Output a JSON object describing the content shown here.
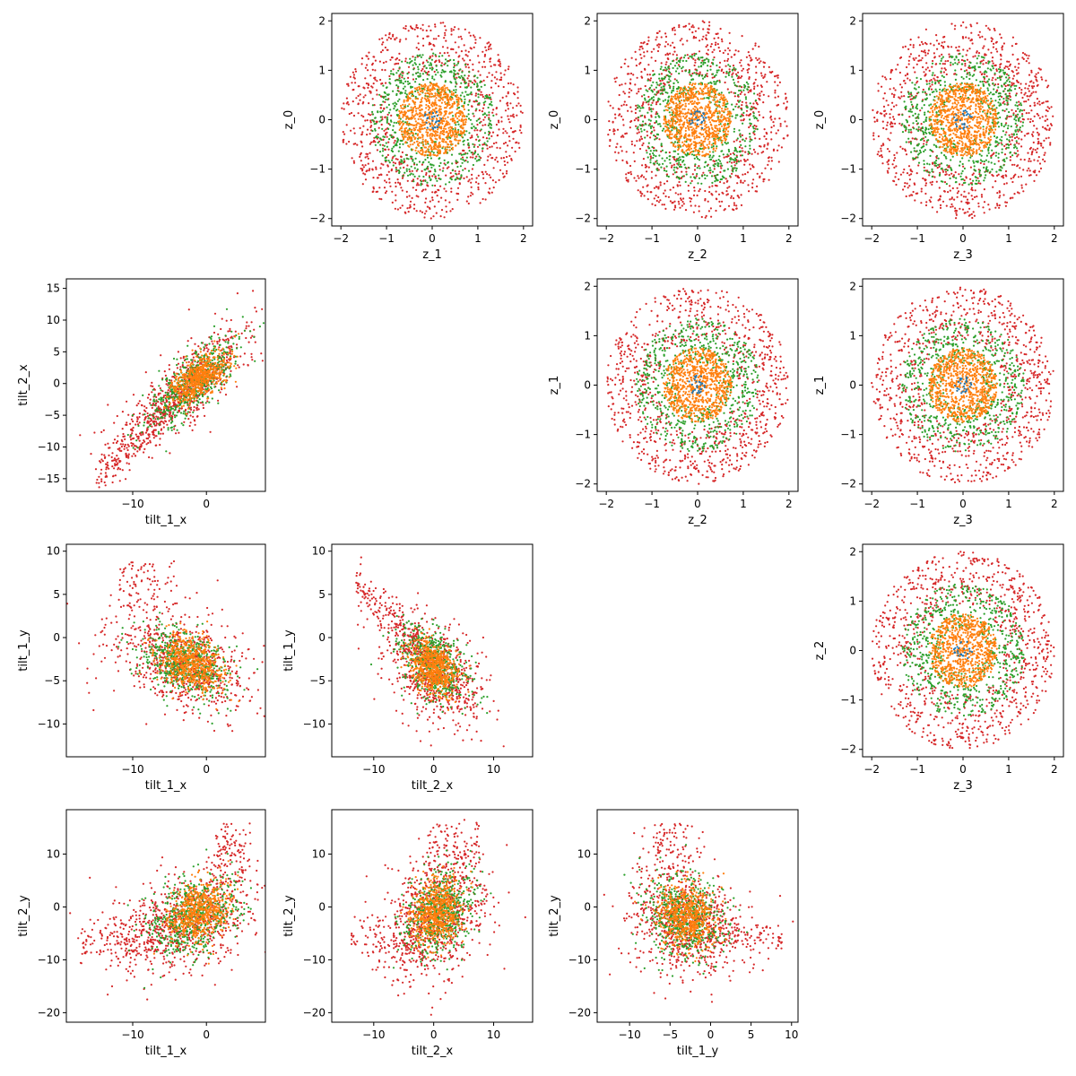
{
  "colors": {
    "outer": "#d62728",
    "middle": "#2ca02c",
    "inner": "#ff7f0e",
    "core": "#1f77b4"
  },
  "chart_data": [
    {
      "type": "scatter",
      "xlabel": "z_1",
      "ylabel": "z_0",
      "xlim": [
        -2.2,
        2.2
      ],
      "ylim": [
        -2.15,
        2.15
      ],
      "xticks": [
        -2,
        -1,
        0,
        1,
        2
      ],
      "yticks": [
        -2,
        -1,
        0,
        1,
        2
      ],
      "pattern": "disc",
      "seed": 11
    },
    {
      "type": "scatter",
      "xlabel": "z_2",
      "ylabel": "z_0",
      "xlim": [
        -2.2,
        2.2
      ],
      "ylim": [
        -2.15,
        2.15
      ],
      "xticks": [
        -2,
        -1,
        0,
        1,
        2
      ],
      "yticks": [
        -2,
        -1,
        0,
        1,
        2
      ],
      "pattern": "disc",
      "seed": 12
    },
    {
      "type": "scatter",
      "xlabel": "z_3",
      "ylabel": "z_0",
      "xlim": [
        -2.2,
        2.2
      ],
      "ylim": [
        -2.15,
        2.15
      ],
      "xticks": [
        -2,
        -1,
        0,
        1,
        2
      ],
      "yticks": [
        -2,
        -1,
        0,
        1,
        2
      ],
      "pattern": "disc",
      "seed": 13
    },
    {
      "type": "scatter",
      "xlabel": "tilt_1_x",
      "ylabel": "tilt_2_x",
      "xlim": [
        -19,
        8
      ],
      "ylim": [
        -17,
        16.5
      ],
      "xticks": [
        -10,
        0
      ],
      "yticks": [
        -15,
        -10,
        -5,
        0,
        5,
        10,
        15
      ],
      "pattern": "t1x_t2x",
      "seed": 21
    },
    {
      "type": "scatter",
      "xlabel": "z_2",
      "ylabel": "z_1",
      "xlim": [
        -2.2,
        2.2
      ],
      "ylim": [
        -2.15,
        2.15
      ],
      "xticks": [
        -2,
        -1,
        0,
        1,
        2
      ],
      "yticks": [
        -2,
        -1,
        0,
        1,
        2
      ],
      "pattern": "disc",
      "seed": 22
    },
    {
      "type": "scatter",
      "xlabel": "z_3",
      "ylabel": "z_1",
      "xlim": [
        -2.2,
        2.2
      ],
      "ylim": [
        -2.15,
        2.15
      ],
      "xticks": [
        -2,
        -1,
        0,
        1,
        2
      ],
      "yticks": [
        -2,
        -1,
        0,
        1,
        2
      ],
      "pattern": "disc",
      "seed": 23
    },
    {
      "type": "scatter",
      "xlabel": "tilt_1_x",
      "ylabel": "tilt_1_y",
      "xlim": [
        -19,
        8
      ],
      "ylim": [
        -13.8,
        10.8
      ],
      "xticks": [
        -10,
        0
      ],
      "yticks": [
        -10,
        -5,
        0,
        5,
        10
      ],
      "pattern": "t1x_t1y",
      "seed": 31
    },
    {
      "type": "scatter",
      "xlabel": "tilt_2_x",
      "ylabel": "tilt_1_y",
      "xlim": [
        -17,
        16.5
      ],
      "ylim": [
        -13.8,
        10.8
      ],
      "xticks": [
        -10,
        0,
        10
      ],
      "yticks": [
        -10,
        -5,
        0,
        5,
        10
      ],
      "pattern": "t2x_t1y",
      "seed": 32
    },
    {
      "type": "scatter",
      "xlabel": "z_3",
      "ylabel": "z_2",
      "xlim": [
        -2.2,
        2.2
      ],
      "ylim": [
        -2.15,
        2.15
      ],
      "xticks": [
        -2,
        -1,
        0,
        1,
        2
      ],
      "yticks": [
        -2,
        -1,
        0,
        1,
        2
      ],
      "pattern": "disc",
      "seed": 33
    },
    {
      "type": "scatter",
      "xlabel": "tilt_1_x",
      "ylabel": "tilt_2_y",
      "xlim": [
        -19,
        8
      ],
      "ylim": [
        -21.8,
        18.4
      ],
      "xticks": [
        -10,
        0
      ],
      "yticks": [
        -20,
        -10,
        0,
        10
      ],
      "pattern": "t1x_t2y",
      "seed": 41
    },
    {
      "type": "scatter",
      "xlabel": "tilt_2_x",
      "ylabel": "tilt_2_y",
      "xlim": [
        -17,
        16.5
      ],
      "ylim": [
        -21.8,
        18.4
      ],
      "xticks": [
        -10,
        0,
        10
      ],
      "yticks": [
        -20,
        -10,
        0,
        10
      ],
      "pattern": "t2x_t2y",
      "seed": 42
    },
    {
      "type": "scatter",
      "xlabel": "tilt_1_y",
      "ylabel": "tilt_2_y",
      "xlim": [
        -14,
        10.8
      ],
      "ylim": [
        -21.8,
        18.4
      ],
      "xticks": [
        -10,
        -5,
        0,
        5,
        10
      ],
      "yticks": [
        -20,
        -10,
        0,
        10
      ],
      "pattern": "t1y_t2y",
      "seed": 43
    }
  ]
}
